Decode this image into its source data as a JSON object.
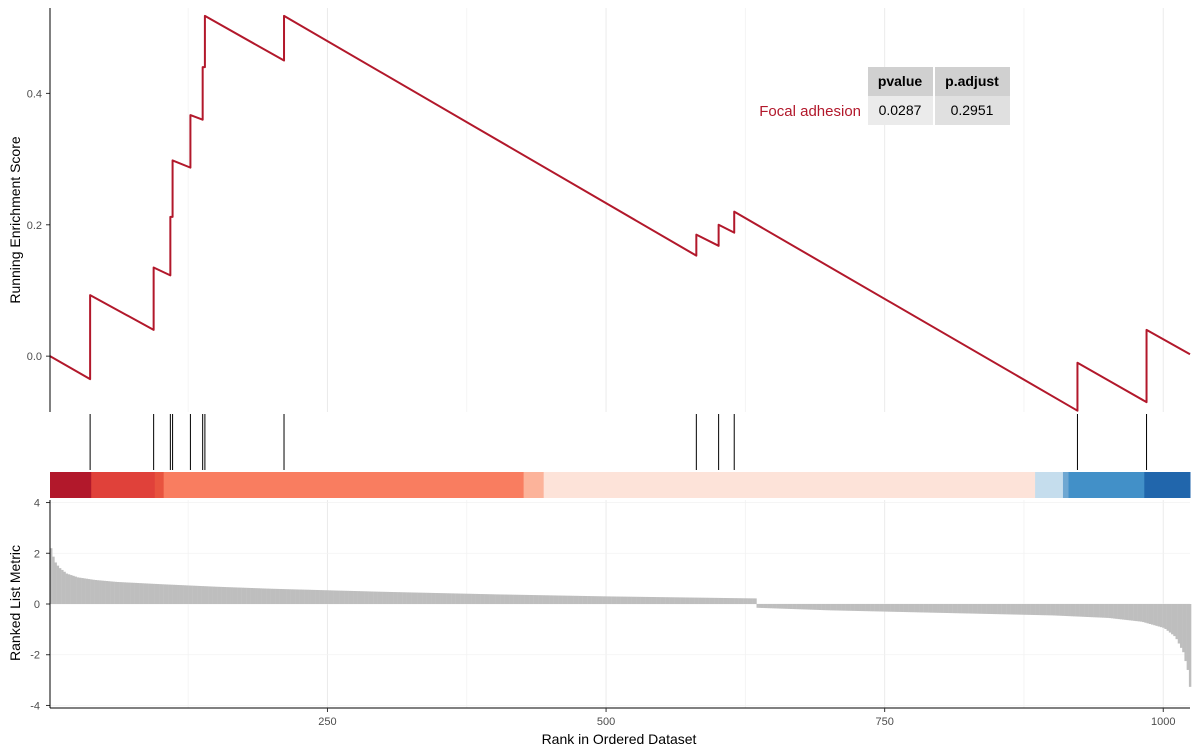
{
  "chart_data": {
    "type": "line",
    "gene_set": "Focal adhesion",
    "xlabel": "Rank in Ordered Dataset",
    "ylabel_top": "Running Enrichment Score",
    "ylabel_bottom": "Ranked List Metric",
    "x_ticks": [
      "250",
      "500",
      "750",
      "1000"
    ],
    "x_tick_values": [
      250,
      500,
      750,
      1000
    ],
    "x_range": [
      1,
      1024
    ],
    "es_ticks": [
      "0.0",
      "0.2",
      "0.4"
    ],
    "es_tick_values": [
      0.0,
      0.2,
      0.4
    ],
    "es_range": [
      -0.085,
      0.53
    ],
    "metric_ticks": [
      "4",
      "2",
      "0",
      "-2",
      "-4"
    ],
    "metric_tick_values": [
      4,
      2,
      0,
      -2,
      -4
    ],
    "metric_range": [
      -4.1,
      4.1
    ],
    "line_color": "#b2182b",
    "hits": [
      37,
      94,
      109,
      111,
      127,
      138,
      140,
      211,
      581,
      601,
      615,
      923,
      985
    ],
    "running_score": [
      {
        "x": 1,
        "y": 0.0
      },
      {
        "x": 37,
        "y": -0.035
      },
      {
        "x": 37,
        "y": 0.093
      },
      {
        "x": 94,
        "y": 0.04
      },
      {
        "x": 94,
        "y": 0.135
      },
      {
        "x": 109,
        "y": 0.123
      },
      {
        "x": 109,
        "y": 0.212
      },
      {
        "x": 111,
        "y": 0.212
      },
      {
        "x": 111,
        "y": 0.298
      },
      {
        "x": 127,
        "y": 0.287
      },
      {
        "x": 127,
        "y": 0.367
      },
      {
        "x": 138,
        "y": 0.36
      },
      {
        "x": 138,
        "y": 0.44
      },
      {
        "x": 140,
        "y": 0.44
      },
      {
        "x": 140,
        "y": 0.518
      },
      {
        "x": 211,
        "y": 0.45
      },
      {
        "x": 211,
        "y": 0.518
      },
      {
        "x": 581,
        "y": 0.153
      },
      {
        "x": 581,
        "y": 0.185
      },
      {
        "x": 601,
        "y": 0.168
      },
      {
        "x": 601,
        "y": 0.2
      },
      {
        "x": 615,
        "y": 0.188
      },
      {
        "x": 615,
        "y": 0.22
      },
      {
        "x": 923,
        "y": -0.083
      },
      {
        "x": 923,
        "y": -0.01
      },
      {
        "x": 985,
        "y": -0.07
      },
      {
        "x": 985,
        "y": 0.04
      },
      {
        "x": 1024,
        "y": 0.003
      }
    ],
    "color_bands": [
      {
        "from": 1,
        "to": 38,
        "color": "#b2182b"
      },
      {
        "from": 38,
        "to": 95,
        "color": "#e0413a"
      },
      {
        "from": 95,
        "to": 103,
        "color": "#e8533f"
      },
      {
        "from": 103,
        "to": 426,
        "color": "#f97d60"
      },
      {
        "from": 426,
        "to": 444,
        "color": "#fcb39a"
      },
      {
        "from": 444,
        "to": 885,
        "color": "#fde3d9"
      },
      {
        "from": 885,
        "to": 910,
        "color": "#c5dded"
      },
      {
        "from": 910,
        "to": 915,
        "color": "#6ea7d2"
      },
      {
        "from": 915,
        "to": 983,
        "color": "#4290c8"
      },
      {
        "from": 983,
        "to": 1024,
        "color": "#2166ac"
      }
    ],
    "ranked_metric_profile": [
      {
        "x": 1,
        "y": 2.2
      },
      {
        "x": 4,
        "y": 1.7
      },
      {
        "x": 8,
        "y": 1.45
      },
      {
        "x": 15,
        "y": 1.2
      },
      {
        "x": 25,
        "y": 1.05
      },
      {
        "x": 40,
        "y": 0.95
      },
      {
        "x": 60,
        "y": 0.87
      },
      {
        "x": 100,
        "y": 0.78
      },
      {
        "x": 150,
        "y": 0.68
      },
      {
        "x": 200,
        "y": 0.6
      },
      {
        "x": 300,
        "y": 0.48
      },
      {
        "x": 400,
        "y": 0.38
      },
      {
        "x": 500,
        "y": 0.3
      },
      {
        "x": 600,
        "y": 0.24
      },
      {
        "x": 634,
        "y": 0.22
      },
      {
        "x": 635,
        "y": -0.15
      },
      {
        "x": 700,
        "y": -0.25
      },
      {
        "x": 800,
        "y": -0.35
      },
      {
        "x": 900,
        "y": -0.45
      },
      {
        "x": 950,
        "y": -0.55
      },
      {
        "x": 980,
        "y": -0.7
      },
      {
        "x": 1000,
        "y": -0.95
      },
      {
        "x": 1010,
        "y": -1.3
      },
      {
        "x": 1017,
        "y": -1.9
      },
      {
        "x": 1021,
        "y": -2.6
      },
      {
        "x": 1024,
        "y": -3.6
      }
    ],
    "stats_table": {
      "columns": [
        "pvalue",
        "p.adjust"
      ],
      "rows": [
        {
          "term": "Focal adhesion",
          "pvalue": "0.0287",
          "p_adjust": "0.2951"
        }
      ]
    },
    "grid": true,
    "legend": "none"
  }
}
